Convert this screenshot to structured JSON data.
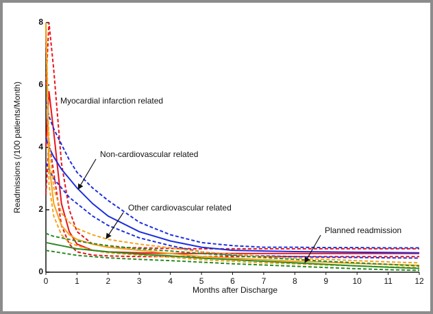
{
  "chart_data": {
    "type": "line",
    "xlabel": "Months after Discharge",
    "ylabel": "Readmissions (/100 patients/Month)",
    "x": [
      0,
      0.1,
      0.25,
      0.5,
      0.75,
      1,
      1.5,
      2,
      3,
      4,
      5,
      6,
      7,
      8,
      9,
      10,
      11,
      12
    ],
    "series": [
      {
        "name": "Myocardial infarction related",
        "color": "#e8141b",
        "values": [
          4.0,
          5.8,
          4.5,
          2.2,
          1.3,
          0.9,
          0.7,
          0.65,
          0.62,
          0.6,
          0.6,
          0.6,
          0.6,
          0.6,
          0.6,
          0.6,
          0.6,
          0.6
        ],
        "upper": [
          6.0,
          8.0,
          6.5,
          3.5,
          2.0,
          1.3,
          0.9,
          0.8,
          0.78,
          0.76,
          0.75,
          0.75,
          0.75,
          0.75,
          0.75,
          0.75,
          0.75,
          0.75
        ],
        "lower": [
          2.5,
          4.2,
          3.2,
          1.5,
          0.9,
          0.65,
          0.55,
          0.52,
          0.5,
          0.5,
          0.5,
          0.5,
          0.5,
          0.5,
          0.5,
          0.5,
          0.5,
          0.5
        ]
      },
      {
        "name": "Non-cardiovascular related",
        "color": "#1a2ee0",
        "values": [
          4.3,
          4.0,
          3.7,
          3.3,
          3.0,
          2.7,
          2.2,
          1.8,
          1.3,
          1.0,
          0.8,
          0.7,
          0.68,
          0.66,
          0.65,
          0.64,
          0.63,
          0.62
        ],
        "upper": [
          5.5,
          5.0,
          4.6,
          4.1,
          3.6,
          3.2,
          2.7,
          2.3,
          1.6,
          1.2,
          0.95,
          0.85,
          0.8,
          0.8,
          0.79,
          0.79,
          0.78,
          0.78
        ],
        "lower": [
          3.5,
          3.3,
          3.0,
          2.7,
          2.4,
          2.2,
          1.8,
          1.5,
          1.1,
          0.85,
          0.65,
          0.55,
          0.52,
          0.5,
          0.48,
          0.47,
          0.46,
          0.45
        ]
      },
      {
        "name": "Other cardiovascular related",
        "color": "#f5a21b",
        "values": [
          8,
          3.5,
          2.2,
          1.5,
          1.2,
          1.05,
          0.9,
          0.8,
          0.7,
          0.6,
          0.5,
          0.45,
          0.4,
          0.35,
          0.32,
          0.28,
          0.25,
          0.22
        ],
        "upper": [
          8,
          4.2,
          2.7,
          1.9,
          1.6,
          1.4,
          1.2,
          1.05,
          0.9,
          0.78,
          0.65,
          0.58,
          0.5,
          0.45,
          0.41,
          0.37,
          0.33,
          0.3
        ],
        "lower": [
          8,
          2.8,
          1.8,
          1.2,
          0.95,
          0.85,
          0.7,
          0.62,
          0.55,
          0.48,
          0.4,
          0.35,
          0.3,
          0.27,
          0.23,
          0.2,
          0.17,
          0.15
        ]
      },
      {
        "name": "Planned readmission",
        "color": "#2a8a22",
        "values": [
          0.95,
          0.93,
          0.9,
          0.85,
          0.8,
          0.75,
          0.7,
          0.65,
          0.58,
          0.52,
          0.45,
          0.4,
          0.35,
          0.3,
          0.25,
          0.2,
          0.16,
          0.12
        ],
        "upper": [
          1.25,
          1.2,
          1.15,
          1.1,
          1.05,
          1.0,
          0.92,
          0.85,
          0.75,
          0.68,
          0.6,
          0.53,
          0.47,
          0.41,
          0.35,
          0.3,
          0.25,
          0.2
        ],
        "lower": [
          0.7,
          0.68,
          0.66,
          0.62,
          0.58,
          0.54,
          0.5,
          0.46,
          0.41,
          0.37,
          0.32,
          0.27,
          0.23,
          0.19,
          0.15,
          0.11,
          0.08,
          0.06
        ]
      }
    ],
    "xlim": [
      0,
      12
    ],
    "xticks": [
      0,
      1,
      2,
      3,
      4,
      5,
      6,
      7,
      8,
      9,
      10,
      11,
      12
    ],
    "ylim": [
      0,
      8
    ],
    "yticks": [
      0,
      2,
      4,
      6,
      8
    ],
    "grid": false
  }
}
